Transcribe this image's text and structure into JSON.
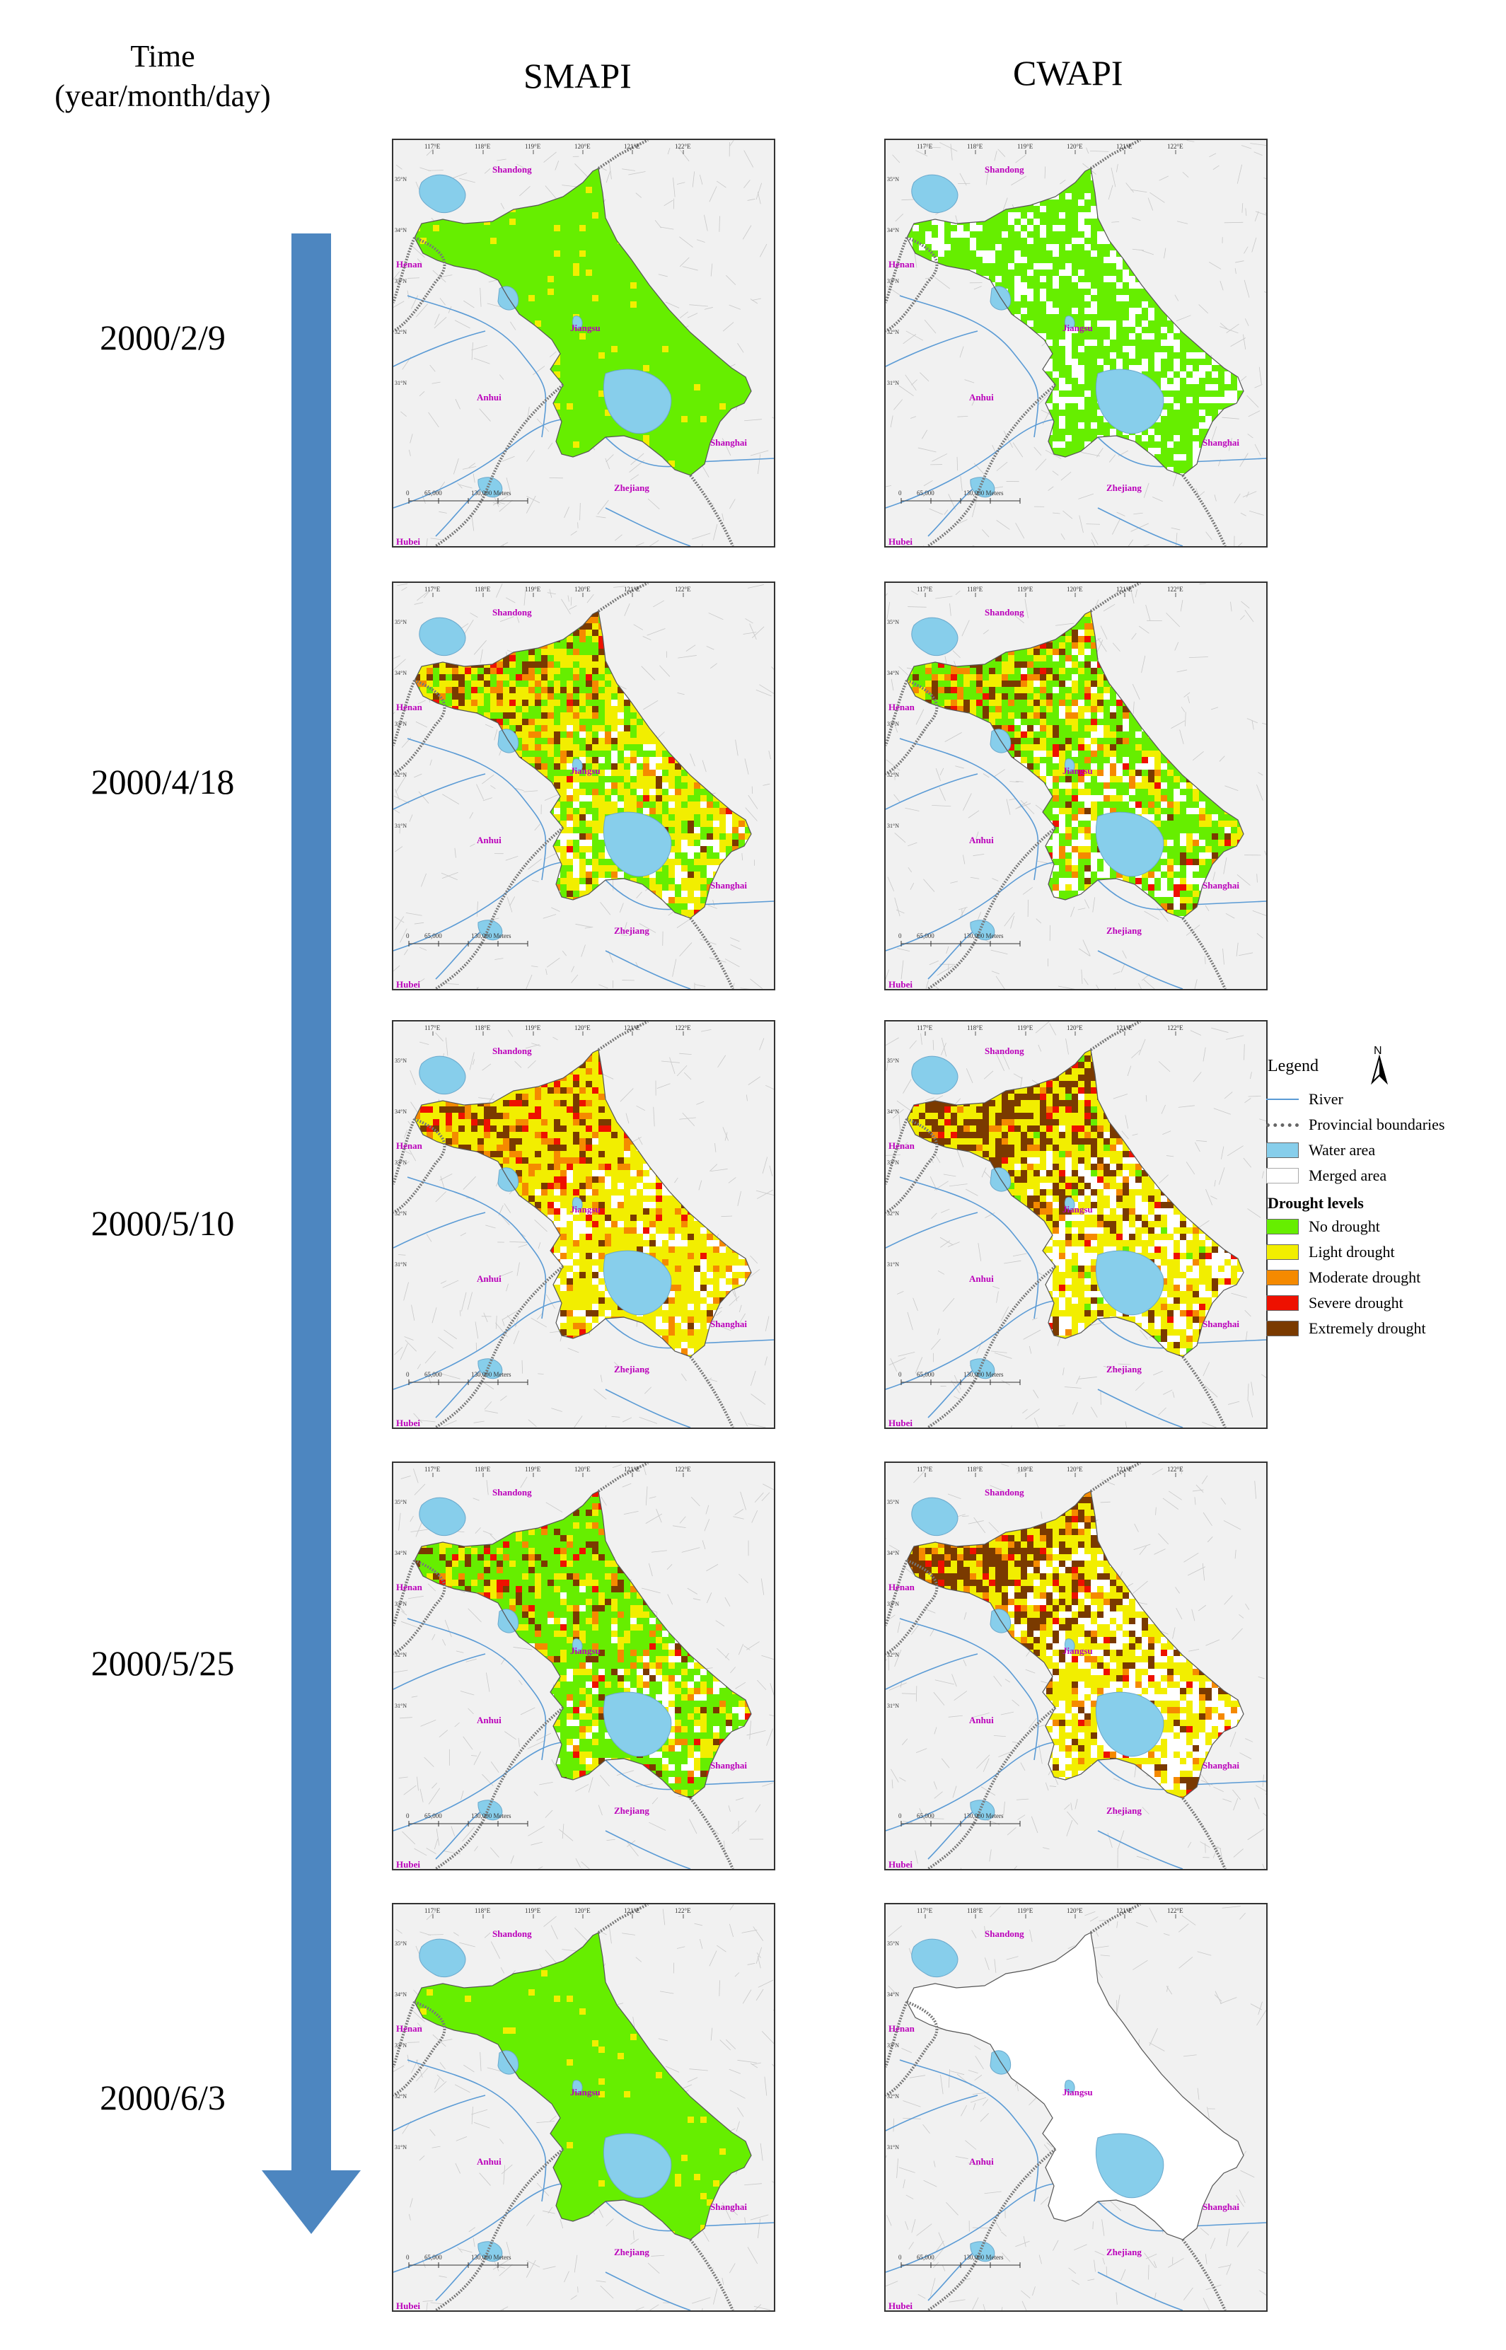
{
  "headers": {
    "time_line1": "Time",
    "time_line2": "(year/month/day)",
    "col1": "SMAPI",
    "col2": "CWAPI"
  },
  "dates": [
    "2000/2/9",
    "2000/4/18",
    "2000/5/10",
    "2000/5/25",
    "2000/6/3"
  ],
  "map_labels": {
    "longitudes": [
      "117°E",
      "118°E",
      "119°E",
      "120°E",
      "121°E",
      "122°E"
    ],
    "latitudes": [
      "35°N",
      "34°N",
      "33°N",
      "32°N",
      "31°N"
    ],
    "provinces": {
      "shandong": "Shandong",
      "henan": "Henan",
      "jiangsu": "Jiangsu",
      "anhui": "Anhui",
      "shanghai": "Shanghai",
      "zhejiang": "Zhejiang",
      "hubei": "Hubei"
    },
    "scale": [
      "0",
      "65,000",
      "130,000 Meters"
    ]
  },
  "colors": {
    "no_drought": "#66ee00",
    "light": "#f2ee00",
    "moderate": "#f58a00",
    "severe": "#ee1100",
    "extreme": "#7a3a00",
    "water": "#87ceeb",
    "province_label": "#bb00bb",
    "arrow": "#4d86c0",
    "river": "#5b9bd5",
    "boundary": "#777777"
  },
  "legend": {
    "title": "Legend",
    "north": "N",
    "river": "River",
    "boundaries": "Provincial boundaries",
    "water": "Water area",
    "merged": "Merged area",
    "levels_title": "Drought levels",
    "levels": [
      "No drought",
      "Light drought",
      "Moderate drought",
      "Severe drought",
      "Extremely drought"
    ]
  },
  "panels": [
    {
      "index": "SMAPI-2000/2/9",
      "mix": [
        0.95,
        0.05,
        0.0,
        0.0,
        0.0
      ]
    },
    {
      "index": "CWAPI-2000/2/9",
      "mix": [
        0.72,
        0.0,
        0.0,
        0.0,
        0.0
      ]
    },
    {
      "index": "SMAPI-2000/4/18",
      "mix": [
        0.28,
        0.45,
        0.12,
        0.03,
        0.12
      ]
    },
    {
      "index": "CWAPI-2000/4/18",
      "mix": [
        0.45,
        0.22,
        0.08,
        0.05,
        0.12
      ]
    },
    {
      "index": "SMAPI-2000/5/10",
      "mix": [
        0.0,
        0.6,
        0.18,
        0.06,
        0.16
      ]
    },
    {
      "index": "CWAPI-2000/5/10",
      "mix": [
        0.02,
        0.45,
        0.08,
        0.07,
        0.33
      ]
    },
    {
      "index": "SMAPI-2000/5/25",
      "mix": [
        0.55,
        0.2,
        0.06,
        0.06,
        0.13
      ]
    },
    {
      "index": "CWAPI-2000/5/25",
      "mix": [
        0.0,
        0.42,
        0.1,
        0.05,
        0.3
      ]
    },
    {
      "index": "SMAPI-2000/6/3",
      "mix": [
        0.97,
        0.03,
        0.0,
        0.0,
        0.0
      ]
    },
    {
      "index": "CWAPI-2000/6/3",
      "mix": [
        0.0,
        0.0,
        0.0,
        0.0,
        0.0
      ]
    }
  ]
}
